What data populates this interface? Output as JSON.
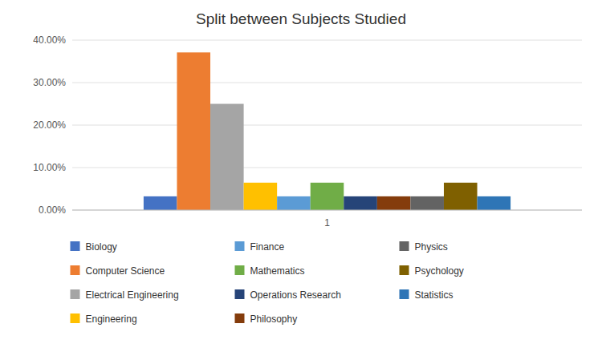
{
  "chart_data": {
    "type": "bar",
    "title": "Split between Subjects Studied",
    "categories": [
      "1"
    ],
    "series": [
      {
        "name": "Biology",
        "color": "#4472C4",
        "values": [
          0.0323
        ]
      },
      {
        "name": "Computer Science",
        "color": "#ED7D31",
        "values": [
          0.371
        ]
      },
      {
        "name": "Electrical Engineering",
        "color": "#A5A5A5",
        "values": [
          0.25
        ]
      },
      {
        "name": "Engineering",
        "color": "#FFC000",
        "values": [
          0.0645
        ]
      },
      {
        "name": "Finance",
        "color": "#5B9BD5",
        "values": [
          0.0323
        ]
      },
      {
        "name": "Mathematics",
        "color": "#70AD47",
        "values": [
          0.0645
        ]
      },
      {
        "name": "Operations Research",
        "color": "#264478",
        "values": [
          0.0323
        ]
      },
      {
        "name": "Philosophy",
        "color": "#843C0C",
        "values": [
          0.0323
        ]
      },
      {
        "name": "Physics",
        "color": "#636363",
        "values": [
          0.0323
        ]
      },
      {
        "name": "Psychology",
        "color": "#7F6000",
        "values": [
          0.0645
        ]
      },
      {
        "name": "Statistics",
        "color": "#2E75B6",
        "values": [
          0.0323
        ]
      }
    ],
    "ylim": [
      0,
      0.4
    ],
    "yticks": [
      {
        "value": 0.0,
        "label": "0.00%"
      },
      {
        "value": 0.1,
        "label": "10.00%"
      },
      {
        "value": 0.2,
        "label": "20.00%"
      },
      {
        "value": 0.3,
        "label": "30.00%"
      },
      {
        "value": 0.4,
        "label": "40.00%"
      }
    ],
    "grid": true,
    "legend": "bottom"
  }
}
